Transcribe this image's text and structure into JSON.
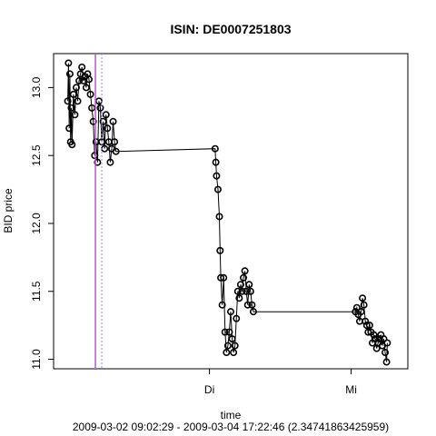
{
  "chart_data": {
    "type": "line",
    "title": "ISIN: DE0007251803",
    "xlabel": "time",
    "ylabel": "BID price",
    "footer": "2009-03-02 09:02:29 - 2009-03-04 17:22:46 (2.34741863425959)",
    "x_ticks": [
      {
        "label": "Di",
        "day": 1.0
      },
      {
        "label": "Mi",
        "day": 2.0
      }
    ],
    "y_ticks": [
      "11.0",
      "11.5",
      "12.0",
      "12.5",
      "13.0"
    ],
    "ylim": [
      10.93,
      13.25
    ],
    "xlim": [
      -0.1,
      2.4
    ],
    "series": [
      {
        "marker": "open-circle",
        "color": "#000000",
        "points": [
          [
            0.0,
            12.9
          ],
          [
            0.005,
            13.18
          ],
          [
            0.01,
            12.7
          ],
          [
            0.015,
            13.1
          ],
          [
            0.02,
            12.6
          ],
          [
            0.025,
            12.85
          ],
          [
            0.03,
            12.58
          ],
          [
            0.04,
            12.95
          ],
          [
            0.05,
            12.8
          ],
          [
            0.06,
            13.0
          ],
          [
            0.07,
            12.9
          ],
          [
            0.08,
            13.05
          ],
          [
            0.09,
            13.1
          ],
          [
            0.1,
            13.15
          ],
          [
            0.11,
            13.05
          ],
          [
            0.12,
            13.08
          ],
          [
            0.13,
            13.0
          ],
          [
            0.14,
            13.1
          ],
          [
            0.15,
            13.06
          ],
          [
            0.16,
            12.95
          ],
          [
            0.17,
            12.85
          ],
          [
            0.18,
            12.75
          ],
          [
            0.19,
            12.5
          ],
          [
            0.2,
            12.6
          ],
          [
            0.21,
            12.45
          ],
          [
            0.22,
            12.9
          ],
          [
            0.23,
            12.85
          ],
          [
            0.24,
            12.6
          ],
          [
            0.25,
            12.75
          ],
          [
            0.26,
            12.55
          ],
          [
            0.27,
            12.8
          ],
          [
            0.28,
            12.7
          ],
          [
            0.29,
            12.6
          ],
          [
            0.3,
            12.45
          ],
          [
            0.31,
            12.55
          ],
          [
            0.32,
            12.75
          ],
          [
            0.33,
            12.6
          ],
          [
            0.34,
            12.53
          ],
          [
            1.04,
            12.55
          ],
          [
            1.045,
            12.45
          ],
          [
            1.05,
            12.35
          ],
          [
            1.06,
            12.25
          ],
          [
            1.07,
            12.05
          ],
          [
            1.075,
            11.8
          ],
          [
            1.08,
            11.6
          ],
          [
            1.09,
            11.4
          ],
          [
            1.1,
            11.6
          ],
          [
            1.11,
            11.2
          ],
          [
            1.12,
            11.05
          ],
          [
            1.13,
            11.1
          ],
          [
            1.14,
            11.2
          ],
          [
            1.15,
            11.35
          ],
          [
            1.16,
            11.15
          ],
          [
            1.17,
            11.05
          ],
          [
            1.18,
            11.1
          ],
          [
            1.19,
            11.3
          ],
          [
            1.2,
            11.5
          ],
          [
            1.21,
            11.45
          ],
          [
            1.22,
            11.55
          ],
          [
            1.23,
            11.5
          ],
          [
            1.24,
            11.6
          ],
          [
            1.25,
            11.65
          ],
          [
            1.26,
            11.5
          ],
          [
            1.27,
            11.4
          ],
          [
            1.28,
            11.55
          ],
          [
            1.29,
            11.5
          ],
          [
            1.3,
            11.4
          ],
          [
            1.31,
            11.35
          ],
          [
            2.03,
            11.35
          ],
          [
            2.04,
            11.38
          ],
          [
            2.05,
            11.33
          ],
          [
            2.06,
            11.28
          ],
          [
            2.07,
            11.35
          ],
          [
            2.08,
            11.45
          ],
          [
            2.09,
            11.4
          ],
          [
            2.1,
            11.28
          ],
          [
            2.11,
            11.25
          ],
          [
            2.12,
            11.2
          ],
          [
            2.13,
            11.25
          ],
          [
            2.14,
            11.2
          ],
          [
            2.15,
            11.12
          ],
          [
            2.16,
            11.18
          ],
          [
            2.17,
            11.15
          ],
          [
            2.18,
            11.08
          ],
          [
            2.19,
            11.12
          ],
          [
            2.2,
            11.15
          ],
          [
            2.21,
            11.18
          ],
          [
            2.22,
            11.1
          ],
          [
            2.23,
            11.15
          ],
          [
            2.24,
            11.05
          ],
          [
            2.25,
            10.98
          ],
          [
            2.255,
            11.12
          ]
        ]
      }
    ],
    "vlines": [
      {
        "x": 0.195,
        "color": "#b05cc6",
        "style": "solid"
      },
      {
        "x": 0.24,
        "color": "#8b8bff",
        "style": "dotted"
      }
    ],
    "grid": false,
    "legend": "none"
  }
}
